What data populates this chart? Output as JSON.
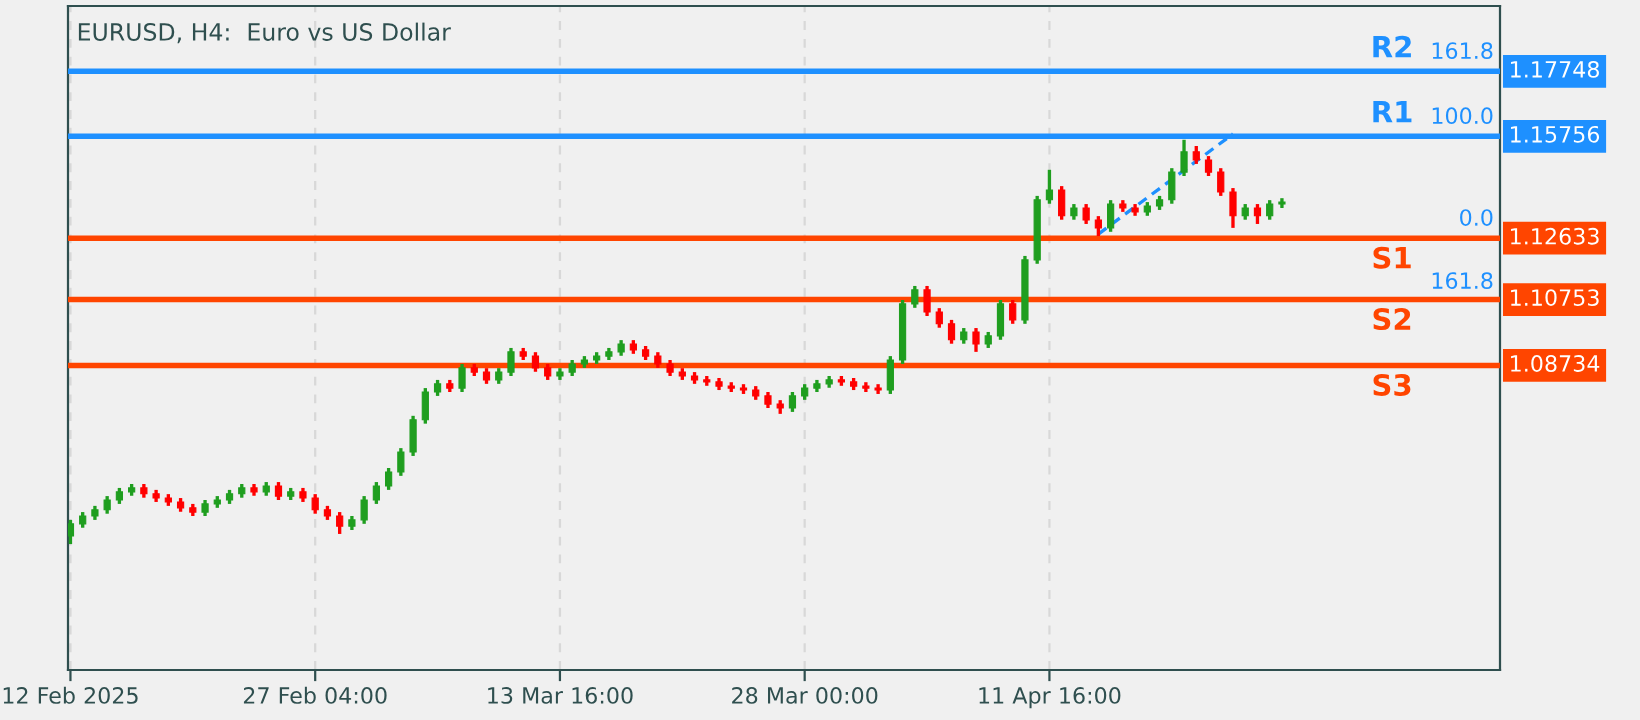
{
  "chart_data": {
    "type": "candlestick",
    "title": "EURUSD, H4:  Euro vs US Dollar",
    "categories": [
      "12 Feb 2025",
      null,
      null,
      null,
      null,
      null,
      null,
      null,
      null,
      null,
      null,
      null,
      null,
      null,
      null,
      null,
      null,
      null,
      null,
      null,
      "27 Feb 04:00",
      null,
      null,
      null,
      null,
      null,
      null,
      null,
      null,
      null,
      null,
      null,
      null,
      null,
      null,
      null,
      null,
      null,
      null,
      null,
      "13 Mar 16:00",
      null,
      null,
      null,
      null,
      null,
      null,
      null,
      null,
      null,
      null,
      null,
      null,
      null,
      null,
      null,
      null,
      null,
      null,
      null,
      "28 Mar 00:00",
      null,
      null,
      null,
      null,
      null,
      null,
      null,
      null,
      null,
      null,
      null,
      null,
      null,
      null,
      null,
      null,
      null,
      null,
      null,
      "11 Apr 16:00",
      null,
      null,
      null,
      null,
      null,
      null,
      null,
      null,
      null,
      null,
      null,
      null,
      null,
      null,
      null,
      null,
      null,
      null,
      null
    ],
    "ohlc": [
      [
        1.0351,
        1.04,
        1.0326,
        1.0388
      ],
      [
        1.0388,
        1.0424,
        1.0376,
        1.0412
      ],
      [
        1.0412,
        1.0443,
        1.04,
        1.0431
      ],
      [
        1.0431,
        1.0473,
        1.0419,
        1.0461
      ],
      [
        1.0461,
        1.0498,
        1.0449,
        1.0486
      ],
      [
        1.0486,
        1.051,
        1.0474,
        1.0498
      ],
      [
        1.0498,
        1.051,
        1.0468,
        1.048
      ],
      [
        1.048,
        1.0492,
        1.0455,
        1.0467
      ],
      [
        1.0467,
        1.0479,
        1.0443,
        1.0455
      ],
      [
        1.0455,
        1.0467,
        1.0425,
        1.0437
      ],
      [
        1.0437,
        1.0449,
        1.0412,
        1.0424
      ],
      [
        1.0424,
        1.0461,
        1.0412,
        1.0449
      ],
      [
        1.0449,
        1.0473,
        1.0437,
        1.0461
      ],
      [
        1.0461,
        1.0492,
        1.0449,
        1.048
      ],
      [
        1.048,
        1.051,
        1.0468,
        1.0498
      ],
      [
        1.0498,
        1.051,
        1.0474,
        1.0486
      ],
      [
        1.0486,
        1.0516,
        1.0474,
        1.0504
      ],
      [
        1.0504,
        1.0516,
        1.0461,
        1.0473
      ],
      [
        1.0473,
        1.0498,
        1.0461,
        1.0486
      ],
      [
        1.0486,
        1.0498,
        1.0455,
        1.0467
      ],
      [
        1.0467,
        1.0479,
        1.0419,
        1.0431
      ],
      [
        1.0431,
        1.0443,
        1.04,
        1.0412
      ],
      [
        1.0412,
        1.0424,
        1.0357,
        1.0381
      ],
      [
        1.0381,
        1.0412,
        1.0369,
        1.04
      ],
      [
        1.04,
        1.0473,
        1.0388,
        1.0461
      ],
      [
        1.0461,
        1.0516,
        1.0449,
        1.0504
      ],
      [
        1.0504,
        1.0559,
        1.0492,
        1.0547
      ],
      [
        1.0547,
        1.062,
        1.0535,
        1.0608
      ],
      [
        1.0608,
        1.0719,
        1.0596,
        1.0707
      ],
      [
        1.0707,
        1.0804,
        1.0695,
        1.0792
      ],
      [
        1.0792,
        1.0829,
        1.078,
        1.0817
      ],
      [
        1.0817,
        1.0829,
        1.0792,
        1.0804
      ],
      [
        1.0804,
        1.0878,
        1.0792,
        1.0866
      ],
      [
        1.0866,
        1.0878,
        1.0841,
        1.0853
      ],
      [
        1.0853,
        1.0865,
        1.0817,
        1.0829
      ],
      [
        1.0829,
        1.0865,
        1.0817,
        1.0853
      ],
      [
        1.0853,
        1.0927,
        1.0841,
        1.0915
      ],
      [
        1.0915,
        1.0927,
        1.089,
        1.0902
      ],
      [
        1.0902,
        1.0914,
        1.0854,
        1.0866
      ],
      [
        1.0866,
        1.0878,
        1.0829,
        1.0841
      ],
      [
        1.0841,
        1.0865,
        1.0829,
        1.0853
      ],
      [
        1.0853,
        1.089,
        1.0841,
        1.0878
      ],
      [
        1.0878,
        1.0902,
        1.0866,
        1.089
      ],
      [
        1.089,
        1.0914,
        1.0878,
        1.0902
      ],
      [
        1.0902,
        1.0927,
        1.089,
        1.0915
      ],
      [
        1.0915,
        1.0951,
        1.0903,
        1.0939
      ],
      [
        1.0939,
        1.0951,
        1.0909,
        1.0921
      ],
      [
        1.0921,
        1.0933,
        1.089,
        1.0902
      ],
      [
        1.0902,
        1.0914,
        1.0866,
        1.0878
      ],
      [
        1.0878,
        1.089,
        1.0841,
        1.0853
      ],
      [
        1.0853,
        1.0865,
        1.0829,
        1.0841
      ],
      [
        1.0841,
        1.0853,
        1.0817,
        1.0829
      ],
      [
        1.0829,
        1.0841,
        1.0811,
        1.0823
      ],
      [
        1.0823,
        1.0835,
        1.0798,
        1.081
      ],
      [
        1.081,
        1.0822,
        1.0792,
        1.0804
      ],
      [
        1.0804,
        1.0816,
        1.0786,
        1.0798
      ],
      [
        1.0798,
        1.081,
        1.0768,
        1.078
      ],
      [
        1.078,
        1.0792,
        1.0743,
        1.0755
      ],
      [
        1.0755,
        1.0767,
        1.0725,
        1.0743
      ],
      [
        1.0743,
        1.0792,
        1.0731,
        1.078
      ],
      [
        1.078,
        1.0816,
        1.0768,
        1.0804
      ],
      [
        1.0804,
        1.0829,
        1.0792,
        1.0817
      ],
      [
        1.0817,
        1.0841,
        1.0805,
        1.0829
      ],
      [
        1.0829,
        1.0841,
        1.0811,
        1.0823
      ],
      [
        1.0823,
        1.0835,
        1.0798,
        1.081
      ],
      [
        1.081,
        1.0822,
        1.0792,
        1.0804
      ],
      [
        1.0804,
        1.0816,
        1.0786,
        1.0798
      ],
      [
        1.0798,
        1.0902,
        1.0786,
        1.089
      ],
      [
        1.089,
        1.1074,
        1.0878,
        1.1062
      ],
      [
        1.1062,
        1.1117,
        1.105,
        1.1105
      ],
      [
        1.1105,
        1.1117,
        1.1025,
        1.1037
      ],
      [
        1.1037,
        1.1049,
        1.0989,
        1.1001
      ],
      [
        1.1001,
        1.1013,
        1.094,
        1.0952
      ],
      [
        1.0952,
        1.0988,
        1.094,
        1.0976
      ],
      [
        1.0976,
        1.0988,
        1.0915,
        1.0939
      ],
      [
        1.0939,
        1.0976,
        1.0927,
        1.0964
      ],
      [
        1.0964,
        1.1074,
        1.0952,
        1.1062
      ],
      [
        1.1062,
        1.1074,
        1.1001,
        1.1013
      ],
      [
        1.1013,
        1.1209,
        1.1001,
        1.1197
      ],
      [
        1.1197,
        1.1393,
        1.1185,
        1.1381
      ],
      [
        1.1381,
        1.1473,
        1.1369,
        1.1411
      ],
      [
        1.1411,
        1.1423,
        1.132,
        1.1332
      ],
      [
        1.1332,
        1.1368,
        1.132,
        1.1356
      ],
      [
        1.1356,
        1.1368,
        1.1307,
        1.1319
      ],
      [
        1.1319,
        1.1331,
        1.127,
        1.1295
      ],
      [
        1.1295,
        1.138,
        1.1283,
        1.1368
      ],
      [
        1.1368,
        1.138,
        1.1344,
        1.1356
      ],
      [
        1.1356,
        1.1368,
        1.1332,
        1.1344
      ],
      [
        1.1344,
        1.1374,
        1.1332,
        1.1362
      ],
      [
        1.1362,
        1.1393,
        1.135,
        1.1381
      ],
      [
        1.1381,
        1.1478,
        1.1369,
        1.1466
      ],
      [
        1.1466,
        1.1565,
        1.1454,
        1.1528
      ],
      [
        1.1528,
        1.1546,
        1.1491,
        1.1503
      ],
      [
        1.1503,
        1.1515,
        1.1454,
        1.1466
      ],
      [
        1.1466,
        1.1478,
        1.1393,
        1.1405
      ],
      [
        1.1405,
        1.1417,
        1.1295,
        1.1332
      ],
      [
        1.1332,
        1.1368,
        1.132,
        1.1356
      ],
      [
        1.1356,
        1.1368,
        1.1307,
        1.1332
      ],
      [
        1.1332,
        1.138,
        1.132,
        1.1368
      ],
      [
        1.1368,
        1.1386,
        1.1356,
        1.1374
      ]
    ],
    "colors": [
      "#1f9e1f",
      "#1f9e1f",
      "#1f9e1f",
      "#1f9e1f",
      "#1f9e1f",
      "#1f9e1f",
      "#ff0000",
      "#ff0000",
      "#ff0000",
      "#ff0000",
      "#ff0000",
      "#1f9e1f",
      "#1f9e1f",
      "#1f9e1f",
      "#1f9e1f",
      "#ff0000",
      "#1f9e1f",
      "#ff0000",
      "#1f9e1f",
      "#ff0000",
      "#ff0000",
      "#ff0000",
      "#ff0000",
      "#1f9e1f",
      "#1f9e1f",
      "#1f9e1f",
      "#1f9e1f",
      "#1f9e1f",
      "#1f9e1f",
      "#1f9e1f",
      "#1f9e1f",
      "#ff0000",
      "#1f9e1f",
      "#ff0000",
      "#ff0000",
      "#1f9e1f",
      "#1f9e1f",
      "#ff0000",
      "#ff0000",
      "#ff0000",
      "#1f9e1f",
      "#1f9e1f",
      "#1f9e1f",
      "#1f9e1f",
      "#1f9e1f",
      "#1f9e1f",
      "#ff0000",
      "#ff0000",
      "#ff0000",
      "#ff0000",
      "#ff0000",
      "#ff0000",
      "#ff0000",
      "#ff0000",
      "#ff0000",
      "#ff0000",
      "#ff0000",
      "#ff0000",
      "#ff0000",
      "#1f9e1f",
      "#1f9e1f",
      "#1f9e1f",
      "#1f9e1f",
      "#ff0000",
      "#ff0000",
      "#ff0000",
      "#ff0000",
      "#1f9e1f",
      "#1f9e1f",
      "#1f9e1f",
      "#ff0000",
      "#ff0000",
      "#ff0000",
      "#1f9e1f",
      "#ff0000",
      "#1f9e1f",
      "#1f9e1f",
      "#ff0000",
      "#1f9e1f",
      "#1f9e1f",
      "#1f9e1f",
      "#ff0000",
      "#1f9e1f",
      "#ff0000",
      "#ff0000",
      "#1f9e1f",
      "#ff0000",
      "#ff0000",
      "#1f9e1f",
      "#1f9e1f",
      "#1f9e1f",
      "#1f9e1f",
      "#ff0000",
      "#ff0000",
      "#ff0000",
      "#ff0000",
      "#1f9e1f",
      "#ff0000",
      "#1f9e1f",
      "#1f9e1f"
    ],
    "series": [
      {
        "type": "line",
        "color": "#1e90ff",
        "line_style": "dashed",
        "values": [
          null,
          null,
          null,
          null,
          null,
          null,
          null,
          null,
          null,
          null,
          null,
          null,
          null,
          null,
          null,
          null,
          null,
          null,
          null,
          null,
          null,
          null,
          null,
          null,
          null,
          null,
          null,
          null,
          null,
          null,
          null,
          null,
          null,
          null,
          null,
          null,
          null,
          null,
          null,
          null,
          null,
          null,
          null,
          null,
          null,
          null,
          null,
          null,
          null,
          null,
          null,
          null,
          null,
          null,
          null,
          null,
          null,
          null,
          null,
          null,
          null,
          null,
          null,
          null,
          null,
          null,
          null,
          null,
          null,
          null,
          null,
          null,
          null,
          null,
          null,
          null,
          null,
          null,
          null,
          null,
          null,
          null,
          null,
          null,
          1.1276,
          null,
          null,
          null,
          null,
          null,
          null,
          null,
          null,
          null,
          null,
          1.1583,
          null,
          null,
          null,
          null
        ]
      }
    ],
    "ylim": [
      0.994,
      1.1975
    ],
    "ref_lines": [
      {
        "axis": "y",
        "value": 1.17748,
        "label": "1.17748",
        "color": "#1e90ff"
      },
      {
        "axis": "y",
        "value": 1.15756,
        "label": "1.15756",
        "color": "#1e90ff"
      },
      {
        "axis": "y",
        "value": 1.12633,
        "label": "1.12633",
        "color": "#ff4500"
      },
      {
        "axis": "y",
        "value": 1.10753,
        "label": "1.10753",
        "color": "#ff4500"
      },
      {
        "axis": "y",
        "value": 1.08734,
        "label": "1.08734",
        "color": "#ff4500"
      }
    ],
    "annotations": [
      {
        "text": "R2",
        "y": 1.17748
      },
      {
        "text": "R1",
        "y": 1.15756
      },
      {
        "text": "S1",
        "y": 1.12633
      },
      {
        "text": "S2",
        "y": 1.10753
      },
      {
        "text": "S3",
        "y": 1.08734
      },
      {
        "text": "161.8",
        "y": 1.17748
      },
      {
        "text": "100.0",
        "y": 1.15756
      },
      {
        "text": "0.0",
        "y": 1.12633
      },
      {
        "text": "161.8",
        "y": 1.107
      }
    ],
    "grid": true
  }
}
